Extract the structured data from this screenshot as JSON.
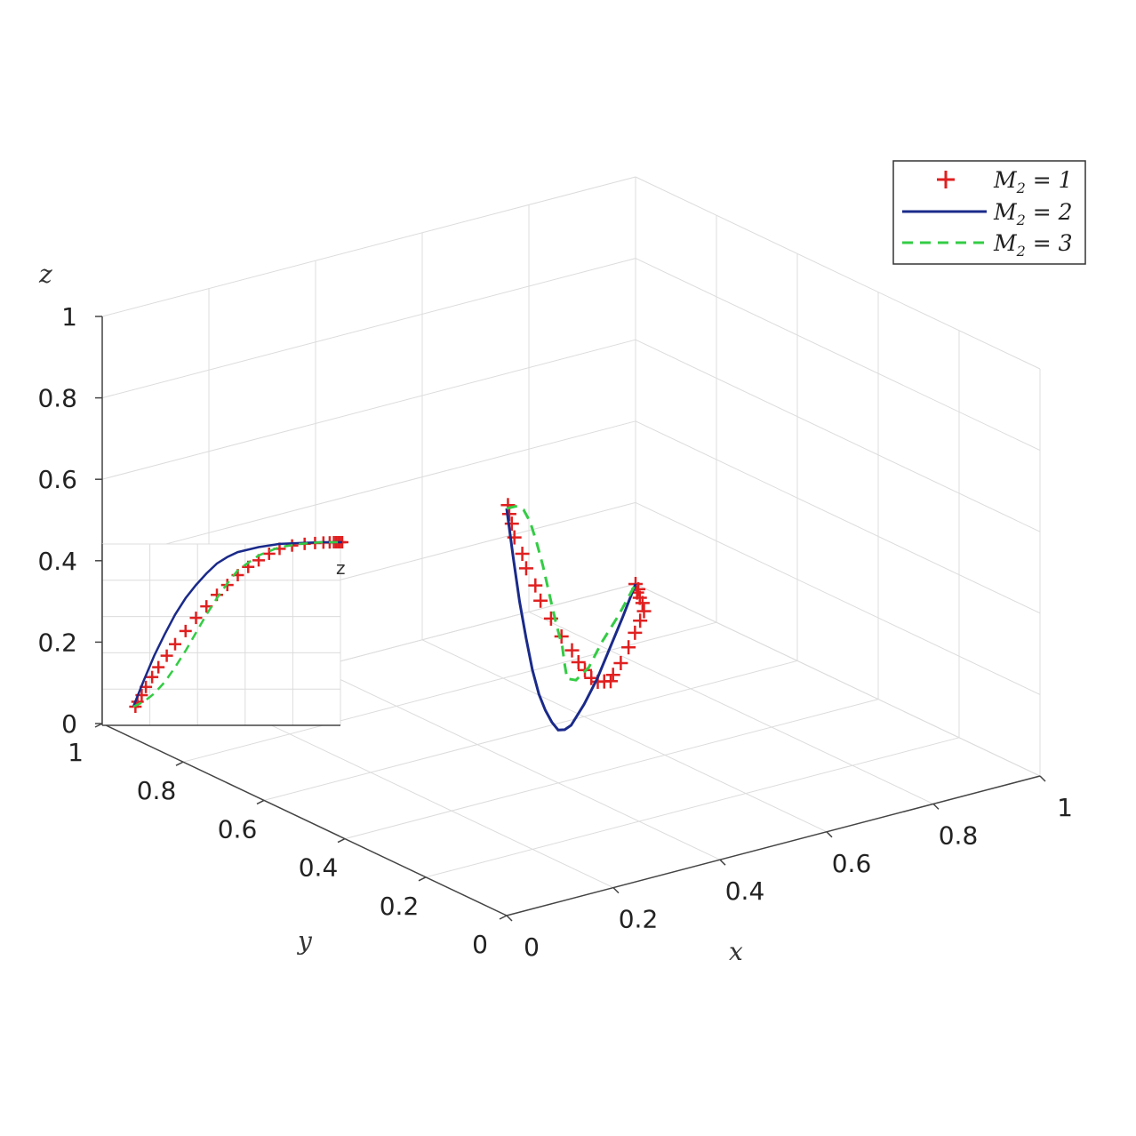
{
  "chart_data": {
    "type": "line",
    "projection": "3d",
    "xlabel": "x",
    "ylabel": "y",
    "zlabel": "z",
    "xlim": [
      0,
      1
    ],
    "ylim": [
      0,
      1
    ],
    "zlim": [
      0,
      1
    ],
    "xticks": [
      "0",
      "0.2",
      "0.4",
      "0.6",
      "0.8",
      "1"
    ],
    "yticks": [
      "0",
      "0.2",
      "0.4",
      "0.6",
      "0.8",
      "1"
    ],
    "zticks": [
      "0",
      "0.2",
      "0.4",
      "0.6",
      "0.8",
      "1"
    ],
    "grid": true,
    "legend_position": "top-right",
    "colors": {
      "M2_1": "#e02020",
      "M2_2": "#1a2a8a",
      "M2_3": "#33cc44"
    },
    "series": [
      {
        "name": "M_2 = 1",
        "marker": "plus",
        "points": [
          [
            0.01,
            0.01,
            1.0
          ],
          [
            0.02,
            0.02,
            0.97
          ],
          [
            0.04,
            0.04,
            0.93
          ],
          [
            0.06,
            0.06,
            0.88
          ],
          [
            0.09,
            0.08,
            0.82
          ],
          [
            0.12,
            0.11,
            0.76
          ],
          [
            0.16,
            0.14,
            0.69
          ],
          [
            0.2,
            0.18,
            0.62
          ],
          [
            0.25,
            0.22,
            0.54
          ],
          [
            0.3,
            0.26,
            0.46
          ],
          [
            0.35,
            0.3,
            0.39
          ],
          [
            0.4,
            0.35,
            0.32
          ],
          [
            0.45,
            0.4,
            0.26
          ],
          [
            0.5,
            0.45,
            0.2
          ],
          [
            0.55,
            0.5,
            0.15
          ],
          [
            0.6,
            0.55,
            0.11
          ],
          [
            0.65,
            0.6,
            0.07
          ],
          [
            0.7,
            0.66,
            0.04
          ],
          [
            0.76,
            0.72,
            0.02
          ],
          [
            0.82,
            0.78,
            0.01
          ],
          [
            0.87,
            0.83,
            0.005
          ],
          [
            0.91,
            0.87,
            0.002
          ],
          [
            0.94,
            0.9,
            0.001
          ],
          [
            0.96,
            0.93,
            0.0
          ],
          [
            0.97,
            0.95,
            0.0
          ],
          [
            0.98,
            0.97,
            0.0
          ],
          [
            0.99,
            0.98,
            0.0
          ],
          [
            1.0,
            1.0,
            0.0
          ]
        ]
      },
      {
        "name": "M_2 = 2",
        "marker": "line",
        "points": [
          [
            0.0,
            0.0,
            1.0
          ],
          [
            0.05,
            0.05,
            0.84
          ],
          [
            0.1,
            0.1,
            0.69
          ],
          [
            0.15,
            0.15,
            0.56
          ],
          [
            0.2,
            0.2,
            0.44
          ],
          [
            0.25,
            0.25,
            0.34
          ],
          [
            0.3,
            0.3,
            0.26
          ],
          [
            0.35,
            0.35,
            0.19
          ],
          [
            0.4,
            0.4,
            0.13
          ],
          [
            0.45,
            0.45,
            0.09
          ],
          [
            0.5,
            0.5,
            0.06
          ],
          [
            0.6,
            0.6,
            0.03
          ],
          [
            0.7,
            0.7,
            0.01
          ],
          [
            0.8,
            0.8,
            0.005
          ],
          [
            0.9,
            0.9,
            0.0
          ],
          [
            1.0,
            1.0,
            0.0
          ]
        ]
      },
      {
        "name": "M_2 = 3",
        "marker": "dashed",
        "points": [
          [
            0.0,
            0.0,
            1.0
          ],
          [
            0.05,
            0.04,
            0.97
          ],
          [
            0.1,
            0.09,
            0.92
          ],
          [
            0.15,
            0.14,
            0.85
          ],
          [
            0.2,
            0.19,
            0.76
          ],
          [
            0.25,
            0.24,
            0.66
          ],
          [
            0.3,
            0.29,
            0.55
          ],
          [
            0.35,
            0.34,
            0.44
          ],
          [
            0.4,
            0.39,
            0.34
          ],
          [
            0.45,
            0.45,
            0.25
          ],
          [
            0.5,
            0.51,
            0.17
          ],
          [
            0.6,
            0.62,
            0.08
          ],
          [
            0.7,
            0.72,
            0.03
          ],
          [
            0.8,
            0.82,
            0.01
          ],
          [
            0.9,
            0.91,
            0.0
          ],
          [
            1.0,
            1.0,
            0.0
          ]
        ]
      }
    ]
  },
  "inset": {
    "label": "z"
  },
  "legend": [
    {
      "label": "M_2 = 1",
      "base": "M",
      "sub": "2",
      "rest": " = 1"
    },
    {
      "label": "M_2 = 2",
      "base": "M",
      "sub": "2",
      "rest": " = 2"
    },
    {
      "label": "M_2 = 3",
      "base": "M",
      "sub": "2",
      "rest": " = 3"
    }
  ]
}
